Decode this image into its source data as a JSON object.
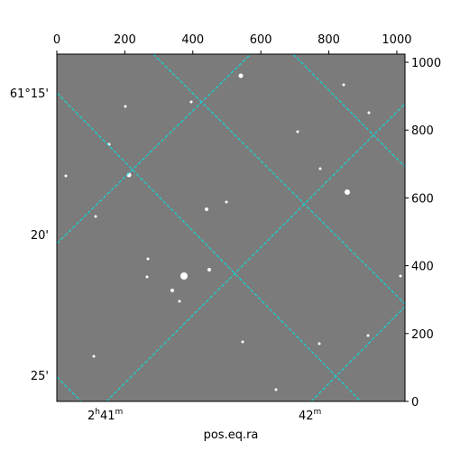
{
  "chart_data": {
    "type": "image",
    "xlabel": "pos.eq.ra",
    "xlim": [
      0,
      1024
    ],
    "xticks": [
      0,
      200,
      400,
      600,
      800,
      1000
    ],
    "ylim": [
      0,
      1024
    ],
    "yticks": [
      0,
      200,
      400,
      600,
      800,
      1000
    ],
    "dec_ticks": [
      "61°15'",
      "20'",
      "25'"
    ],
    "ra_ticks": [
      [
        "2",
        "h",
        "41",
        "m"
      ],
      [
        "42",
        "m"
      ]
    ],
    "grid_color": "#00e5e5"
  }
}
